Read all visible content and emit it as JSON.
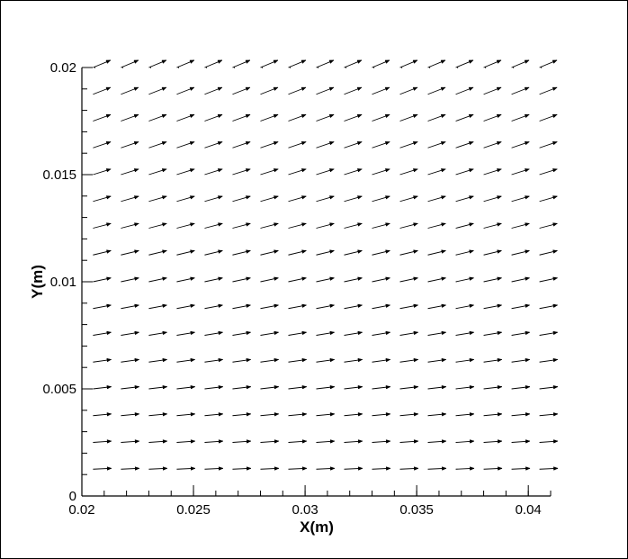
{
  "chart_data": {
    "type": "vector-field",
    "xlabel": "X(m)",
    "ylabel": "Y(m)",
    "xlim": [
      0.02,
      0.041
    ],
    "ylim": [
      0,
      0.02
    ],
    "xticks": [
      {
        "value": 0.02,
        "label": "0.02"
      },
      {
        "value": 0.025,
        "label": "0.025"
      },
      {
        "value": 0.03,
        "label": "0.03"
      },
      {
        "value": 0.035,
        "label": "0.035"
      },
      {
        "value": 0.04,
        "label": "0.04"
      }
    ],
    "yticks": [
      {
        "value": 0,
        "label": "0"
      },
      {
        "value": 0.005,
        "label": "0.005"
      },
      {
        "value": 0.01,
        "label": "0.01"
      },
      {
        "value": 0.015,
        "label": "0.015"
      },
      {
        "value": 0.02,
        "label": "0.02"
      }
    ],
    "grid": false,
    "legend": "none",
    "vector_color": "#000000",
    "vector_grid": {
      "x_start": 0.0205,
      "x_step": 0.00125,
      "x_count": 17,
      "y_start": 0.00125,
      "y_step": 0.00125,
      "y_count": 16
    },
    "vector_field": {
      "u_bottom": 0.000825,
      "u_top": 0.000785,
      "v_bottom": 4e-05,
      "v_top": 0.00034,
      "top_row_near_zero": true
    }
  }
}
